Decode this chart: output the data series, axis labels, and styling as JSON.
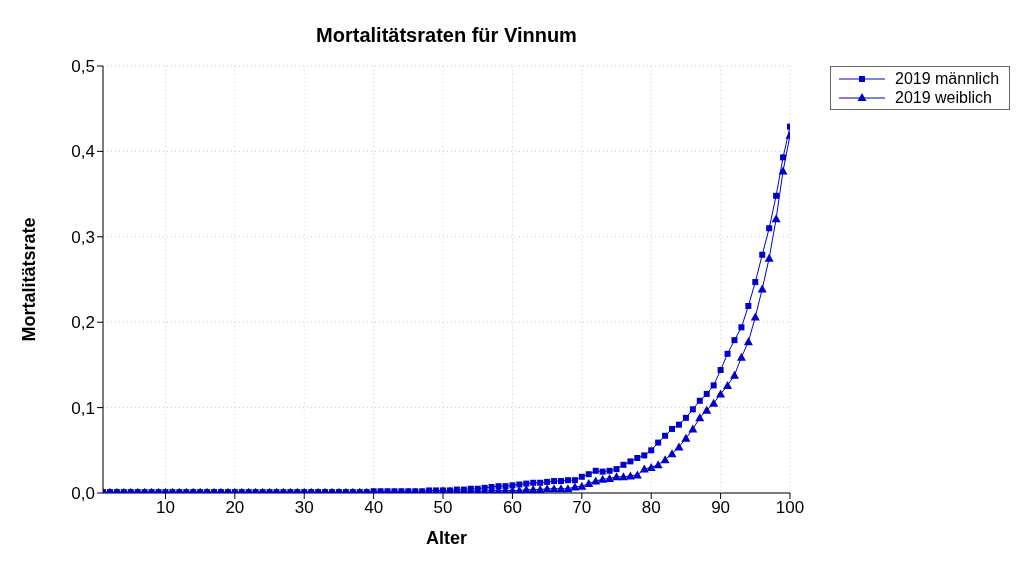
{
  "chart_data": {
    "type": "line",
    "title": "Mortalitätsraten für Vinnum",
    "xlabel": "Alter",
    "ylabel": "Mortalitätsrate",
    "x": [
      1,
      2,
      3,
      4,
      5,
      6,
      7,
      8,
      9,
      10,
      11,
      12,
      13,
      14,
      15,
      16,
      17,
      18,
      19,
      20,
      21,
      22,
      23,
      24,
      25,
      26,
      27,
      28,
      29,
      30,
      31,
      32,
      33,
      34,
      35,
      36,
      37,
      38,
      39,
      40,
      41,
      42,
      43,
      44,
      45,
      46,
      47,
      48,
      49,
      50,
      51,
      52,
      53,
      54,
      55,
      56,
      57,
      58,
      59,
      60,
      61,
      62,
      63,
      64,
      65,
      66,
      67,
      68,
      69,
      70,
      71,
      72,
      73,
      74,
      75,
      76,
      77,
      78,
      79,
      80,
      81,
      82,
      83,
      84,
      85,
      86,
      87,
      88,
      89,
      90,
      91,
      92,
      93,
      94,
      95,
      96,
      97,
      98,
      99,
      100
    ],
    "series": [
      {
        "name": "2019 männlich",
        "color": "#0000cc",
        "marker": "square",
        "values": [
          0.001,
          0.001,
          0.001,
          0.001,
          0.001,
          0.001,
          0.001,
          0.001,
          0.001,
          0.001,
          0.001,
          0.001,
          0.001,
          0.001,
          0.001,
          0.001,
          0.001,
          0.001,
          0.001,
          0.001,
          0.001,
          0.001,
          0.001,
          0.001,
          0.001,
          0.001,
          0.001,
          0.001,
          0.001,
          0.001,
          0.001,
          0.001,
          0.001,
          0.001,
          0.001,
          0.001,
          0.001,
          0.001,
          0.001,
          0.002,
          0.002,
          0.002,
          0.002,
          0.002,
          0.002,
          0.002,
          0.002,
          0.003,
          0.003,
          0.003,
          0.003,
          0.004,
          0.004,
          0.005,
          0.005,
          0.006,
          0.007,
          0.008,
          0.008,
          0.009,
          0.01,
          0.011,
          0.012,
          0.012,
          0.013,
          0.014,
          0.014,
          0.015,
          0.015,
          0.019,
          0.022,
          0.026,
          0.025,
          0.026,
          0.028,
          0.033,
          0.037,
          0.041,
          0.044,
          0.05,
          0.059,
          0.067,
          0.075,
          0.08,
          0.088,
          0.098,
          0.108,
          0.116,
          0.126,
          0.144,
          0.163,
          0.179,
          0.194,
          0.219,
          0.247,
          0.279,
          0.31,
          0.348,
          0.393,
          0.429
        ]
      },
      {
        "name": "2019 weiblich",
        "color": "#0000cc",
        "marker": "triangle",
        "values": [
          0.001,
          0.001,
          0.001,
          0.001,
          0.001,
          0.001,
          0.001,
          0.001,
          0.001,
          0.001,
          0.001,
          0.001,
          0.001,
          0.001,
          0.001,
          0.001,
          0.001,
          0.001,
          0.001,
          0.001,
          0.001,
          0.001,
          0.001,
          0.001,
          0.001,
          0.001,
          0.001,
          0.001,
          0.001,
          0.001,
          0.001,
          0.001,
          0.001,
          0.001,
          0.001,
          0.001,
          0.001,
          0.001,
          0.001,
          0.001,
          0.001,
          0.001,
          0.001,
          0.001,
          0.001,
          0.001,
          0.001,
          0.001,
          0.001,
          0.002,
          0.002,
          0.002,
          0.002,
          0.002,
          0.002,
          0.002,
          0.003,
          0.003,
          0.003,
          0.003,
          0.003,
          0.004,
          0.004,
          0.004,
          0.005,
          0.005,
          0.005,
          0.005,
          0.007,
          0.008,
          0.011,
          0.014,
          0.016,
          0.017,
          0.019,
          0.019,
          0.02,
          0.021,
          0.028,
          0.03,
          0.033,
          0.039,
          0.046,
          0.054,
          0.064,
          0.075,
          0.088,
          0.097,
          0.105,
          0.116,
          0.126,
          0.138,
          0.159,
          0.177,
          0.206,
          0.239,
          0.275,
          0.321,
          0.377,
          0.419
        ]
      }
    ],
    "xlim": [
      1,
      100
    ],
    "xticks": [
      10,
      20,
      30,
      40,
      50,
      60,
      70,
      80,
      90,
      100
    ],
    "ylim": [
      0,
      0.5
    ],
    "yticks": [
      {
        "value": 0,
        "label": "0,0"
      },
      {
        "value": 0.1,
        "label": "0,1"
      },
      {
        "value": 0.2,
        "label": "0,2"
      },
      {
        "value": 0.3,
        "label": "0,3"
      },
      {
        "value": 0.4,
        "label": "0,4"
      },
      {
        "value": 0.5,
        "label": "0,5"
      }
    ],
    "grid": true,
    "legend": "top right",
    "line_style": "solid"
  }
}
